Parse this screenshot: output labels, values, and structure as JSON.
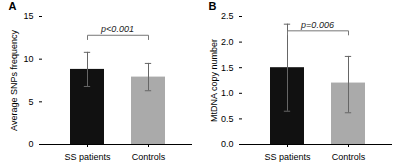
{
  "chart_data": [
    {
      "type": "bar",
      "title": "A",
      "categories": [
        "SS patients",
        "Controls"
      ],
      "values": [
        8.8,
        7.9
      ],
      "errors": [
        2.0,
        1.6
      ],
      "colors": [
        "#111111",
        "#aaaaaa"
      ],
      "ylabel": "Average SNPs frequency",
      "ylim": [
        0,
        15
      ],
      "yticks": [
        0,
        5,
        10,
        15
      ],
      "grid": false,
      "annotations": [
        {
          "text": "p<0.001",
          "y": 13.2,
          "bracket_y": 12.8,
          "bracket_drop": 0.5
        }
      ]
    },
    {
      "type": "bar",
      "title": "B",
      "categories": [
        "SS patients",
        "Controls"
      ],
      "values": [
        1.5,
        1.2
      ],
      "errors_upper": [
        0.85,
        0.52
      ],
      "errors_lower": [
        0.85,
        0.58
      ],
      "colors": [
        "#111111",
        "#aaaaaa"
      ],
      "ylabel": "MtDNA copy number",
      "ylim": [
        0,
        2.5
      ],
      "yticks": [
        {
          "value": 0,
          "label": "0.0"
        },
        0.5,
        {
          "value": 1,
          "label": "1.0"
        },
        1.5,
        {
          "value": 2,
          "label": "2.0"
        },
        2.5
      ],
      "grid": false,
      "annotations": [
        {
          "text": "p=0.006",
          "y": 2.28,
          "bracket_y": 2.22,
          "bracket_drop": 0.08
        }
      ]
    }
  ]
}
